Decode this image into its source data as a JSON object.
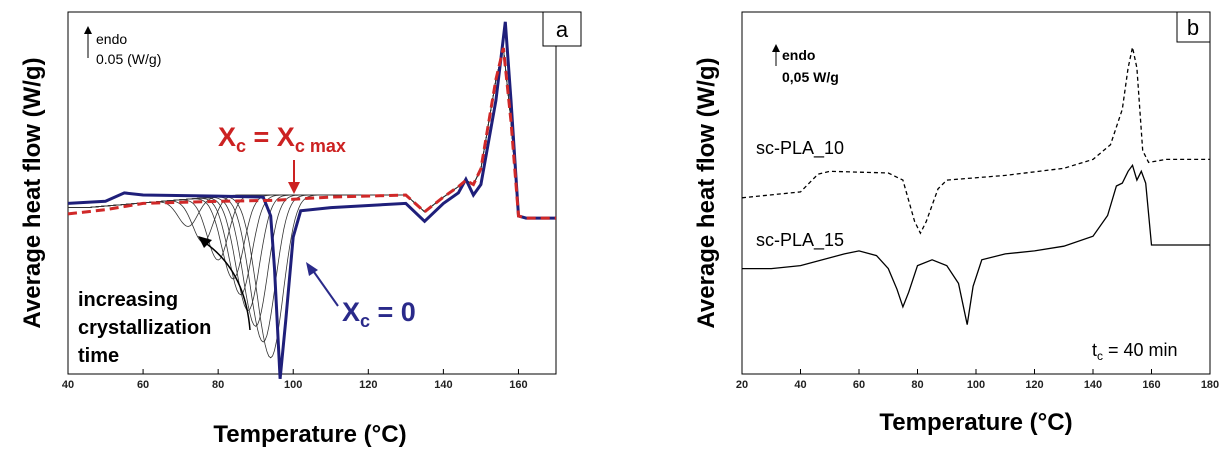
{
  "chart_data": [
    {
      "type": "line",
      "panel_label": "a",
      "xlabel": "Temperature (°C)",
      "ylabel": "Average heat flow (W/g)",
      "xlim": [
        40,
        170
      ],
      "x_ticks": [
        "40",
        "60",
        "80",
        "100",
        "120",
        "140",
        "160"
      ],
      "scale_bar": {
        "direction": "endo",
        "value": "0.05 (W/g)"
      },
      "annotations": {
        "xc_max": {
          "prefix": "X",
          "sub": "c",
          "eq": " = X",
          "sub2": "c max"
        },
        "xc_zero": {
          "prefix": "X",
          "sub": "c",
          "eq": " = 0"
        },
        "arrow_note": [
          "increasing",
          "crystallization",
          "time"
        ]
      },
      "colors": {
        "xc_zero": "#1f1f7a",
        "xc_max": "#d02828",
        "intermediate": "#333333"
      },
      "series": [
        {
          "name": "X_c = 0",
          "min_x": 96.5,
          "points": [
            [
              40,
              0.012
            ],
            [
              50,
              0.014
            ],
            [
              55,
              0.022
            ],
            [
              60,
              0.02
            ],
            [
              80,
              0.019
            ],
            [
              92,
              0.018
            ],
            [
              94,
              0.0
            ],
            [
              95,
              -0.05
            ],
            [
              96.5,
              -0.155
            ],
            [
              98,
              -0.1
            ],
            [
              100,
              -0.02
            ],
            [
              102,
              0.005
            ],
            [
              110,
              0.008
            ],
            [
              130,
              0.012
            ],
            [
              135,
              -0.005
            ],
            [
              140,
              0.012
            ],
            [
              144,
              0.022
            ],
            [
              146,
              0.035
            ],
            [
              148,
              0.02
            ],
            [
              150,
              0.03
            ],
            [
              154,
              0.11
            ],
            [
              156.5,
              0.185
            ],
            [
              158,
              0.11
            ],
            [
              160,
              0.0
            ],
            [
              162,
              -0.002
            ],
            [
              170,
              -0.002
            ]
          ]
        },
        {
          "name": "X_c = X_c max",
          "points": [
            [
              40,
              0.002
            ],
            [
              50,
              0.006
            ],
            [
              60,
              0.012
            ],
            [
              80,
              0.014
            ],
            [
              95,
              0.015
            ],
            [
              110,
              0.018
            ],
            [
              130,
              0.02
            ],
            [
              135,
              0.004
            ],
            [
              140,
              0.018
            ],
            [
              144,
              0.028
            ],
            [
              146,
              0.034
            ],
            [
              148,
              0.03
            ],
            [
              150,
              0.045
            ],
            [
              154,
              0.13
            ],
            [
              156,
              0.16
            ],
            [
              158,
              0.09
            ],
            [
              160,
              0.0
            ],
            [
              162,
              -0.002
            ],
            [
              170,
              -0.002
            ]
          ]
        }
      ],
      "intermediate_mins": [
        [
          72,
          -0.01
        ],
        [
          76,
          -0.025
        ],
        [
          80,
          -0.042
        ],
        [
          84,
          -0.06
        ],
        [
          86,
          -0.075
        ],
        [
          88,
          -0.09
        ],
        [
          90,
          -0.105
        ],
        [
          92,
          -0.12
        ],
        [
          94,
          -0.135
        ]
      ]
    },
    {
      "type": "line",
      "panel_label": "b",
      "xlabel": "Temperature (°C)",
      "ylabel": "Average heat flow (W/g)",
      "xlim": [
        20,
        180
      ],
      "x_ticks": [
        "20",
        "40",
        "60",
        "80",
        "100",
        "120",
        "140",
        "160",
        "180"
      ],
      "scale_bar": {
        "direction": "endo",
        "value": "0,05 W/g"
      },
      "tc_label": {
        "prefix": "t",
        "sub": "c",
        "rest": " = 40 min"
      },
      "series": [
        {
          "name": "sc-PLA_10",
          "style": "dashed",
          "points": [
            [
              20,
              -0.02
            ],
            [
              40,
              -0.01
            ],
            [
              46,
              0.02
            ],
            [
              50,
              0.025
            ],
            [
              70,
              0.022
            ],
            [
              75,
              0.01
            ],
            [
              79,
              -0.06
            ],
            [
              81,
              -0.08
            ],
            [
              83,
              -0.06
            ],
            [
              87,
              -0.005
            ],
            [
              90,
              0.01
            ],
            [
              110,
              0.018
            ],
            [
              130,
              0.03
            ],
            [
              140,
              0.045
            ],
            [
              146,
              0.07
            ],
            [
              150,
              0.13
            ],
            [
              152,
              0.2
            ],
            [
              153.5,
              0.235
            ],
            [
              155,
              0.2
            ],
            [
              157,
              0.06
            ],
            [
              159,
              0.04
            ],
            [
              165,
              0.045
            ],
            [
              180,
              0.045
            ]
          ]
        },
        {
          "name": "sc-PLA_15",
          "style": "solid",
          "points": [
            [
              20,
              -0.14
            ],
            [
              30,
              -0.14
            ],
            [
              40,
              -0.135
            ],
            [
              55,
              -0.115
            ],
            [
              60,
              -0.11
            ],
            [
              66,
              -0.118
            ],
            [
              70,
              -0.14
            ],
            [
              73,
              -0.175
            ],
            [
              75,
              -0.205
            ],
            [
              77,
              -0.18
            ],
            [
              80,
              -0.135
            ],
            [
              85,
              -0.125
            ],
            [
              90,
              -0.135
            ],
            [
              94,
              -0.165
            ],
            [
              97,
              -0.235
            ],
            [
              99,
              -0.17
            ],
            [
              102,
              -0.125
            ],
            [
              110,
              -0.115
            ],
            [
              120,
              -0.11
            ],
            [
              130,
              -0.102
            ],
            [
              140,
              -0.085
            ],
            [
              145,
              -0.05
            ],
            [
              148,
              0.0
            ],
            [
              150,
              0.005
            ],
            [
              152,
              0.025
            ],
            [
              153.5,
              0.035
            ],
            [
              155,
              0.01
            ],
            [
              156.5,
              0.025
            ],
            [
              158,
              0.005
            ],
            [
              160,
              -0.1
            ],
            [
              165,
              -0.1
            ],
            [
              180,
              -0.1
            ]
          ]
        }
      ]
    }
  ]
}
